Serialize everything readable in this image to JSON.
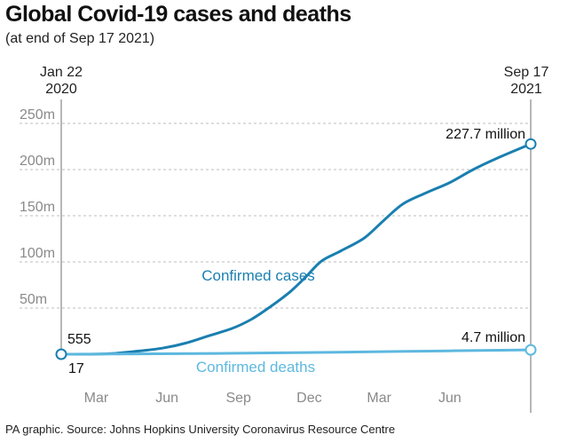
{
  "header": {
    "title": "Global Covid-19 cases and deaths",
    "subtitle": "(at end of Sep 17 2021)"
  },
  "footer": {
    "source": "PA graphic. Source: Johns Hopkins University Coronavirus Resource Centre"
  },
  "colors": {
    "cases": "#1a7fb0",
    "deaths": "#5db8df",
    "grid": "#bdbdbd",
    "tick_text": "#8a8a8a"
  },
  "chart_data": {
    "type": "line",
    "title": "Global Covid-19 cases and deaths",
    "subtitle": "(at end of Sep 17 2021)",
    "xlabel": "",
    "ylabel": "",
    "x_range_days": [
      0,
      604
    ],
    "ylim": [
      0,
      250
    ],
    "y_unit": "millions",
    "y_ticks": [
      {
        "value": 50,
        "label": "50m"
      },
      {
        "value": 100,
        "label": "100m"
      },
      {
        "value": 150,
        "label": "150m"
      },
      {
        "value": 200,
        "label": "200m"
      },
      {
        "value": 250,
        "label": "250m"
      }
    ],
    "x_ticks": [
      {
        "day": 45,
        "label": "Mar"
      },
      {
        "day": 136,
        "label": "Jun"
      },
      {
        "day": 228,
        "label": "Sep"
      },
      {
        "day": 319,
        "label": "Dec"
      },
      {
        "day": 409,
        "label": "Mar"
      },
      {
        "day": 500,
        "label": "Jun"
      }
    ],
    "start_date": {
      "line1": "Jan 22",
      "line2": "2020",
      "day": 0
    },
    "end_date": {
      "line1": "Sep 17",
      "line2": "2021",
      "day": 604
    },
    "series": [
      {
        "name": "Confirmed cases",
        "label": "Confirmed cases",
        "start_annotation": "555",
        "end_annotation": "227.7 million",
        "points": [
          {
            "day": 0,
            "value": 0
          },
          {
            "day": 45,
            "value": 0.1
          },
          {
            "day": 70,
            "value": 1
          },
          {
            "day": 100,
            "value": 3.5
          },
          {
            "day": 130,
            "value": 6.5
          },
          {
            "day": 160,
            "value": 12
          },
          {
            "day": 190,
            "value": 20
          },
          {
            "day": 220,
            "value": 28
          },
          {
            "day": 245,
            "value": 38
          },
          {
            "day": 270,
            "value": 52
          },
          {
            "day": 295,
            "value": 68
          },
          {
            "day": 315,
            "value": 84
          },
          {
            "day": 335,
            "value": 101
          },
          {
            "day": 360,
            "value": 112
          },
          {
            "day": 390,
            "value": 126
          },
          {
            "day": 415,
            "value": 145
          },
          {
            "day": 440,
            "value": 163
          },
          {
            "day": 470,
            "value": 175
          },
          {
            "day": 500,
            "value": 186
          },
          {
            "day": 530,
            "value": 200
          },
          {
            "day": 560,
            "value": 212
          },
          {
            "day": 604,
            "value": 227.7
          }
        ]
      },
      {
        "name": "Confirmed deaths",
        "label": "Confirmed deaths",
        "start_annotation": "17",
        "end_annotation": "4.7 million",
        "points": [
          {
            "day": 0,
            "value": 0
          },
          {
            "day": 100,
            "value": 0.4
          },
          {
            "day": 200,
            "value": 0.9
          },
          {
            "day": 300,
            "value": 1.6
          },
          {
            "day": 400,
            "value": 2.6
          },
          {
            "day": 500,
            "value": 3.7
          },
          {
            "day": 604,
            "value": 4.7
          }
        ]
      }
    ]
  }
}
